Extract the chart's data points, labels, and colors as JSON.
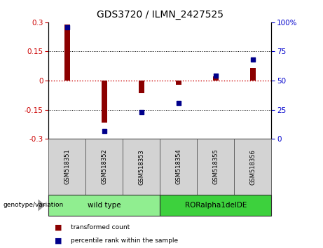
{
  "title": "GDS3720 / ILMN_2427525",
  "samples": [
    "GSM518351",
    "GSM518352",
    "GSM518353",
    "GSM518354",
    "GSM518355",
    "GSM518356"
  ],
  "bar_values": [
    0.29,
    -0.215,
    -0.065,
    -0.022,
    0.022,
    0.065
  ],
  "scatter_values": [
    96,
    7,
    23,
    31,
    54,
    68
  ],
  "ylim_left": [
    -0.3,
    0.3
  ],
  "ylim_right": [
    0,
    100
  ],
  "yticks_left": [
    -0.3,
    -0.15,
    0,
    0.15,
    0.3
  ],
  "yticks_right": [
    0,
    25,
    50,
    75,
    100
  ],
  "bar_color": "#8B0000",
  "scatter_color": "#00008B",
  "zero_line_color": "#CC0000",
  "grid_color": "#000000",
  "group1_label": "wild type",
  "group2_label": "RORalpha1delDE",
  "group1_color": "#90EE90",
  "group2_color": "#3DD13D",
  "genotype_label": "genotype/variation",
  "legend_bar_label": "transformed count",
  "legend_scatter_label": "percentile rank within the sample",
  "background_color": "#ffffff",
  "plot_bg_color": "#ffffff",
  "tick_label_color_left": "#CC0000",
  "tick_label_color_right": "#0000CC",
  "bar_width": 0.15
}
